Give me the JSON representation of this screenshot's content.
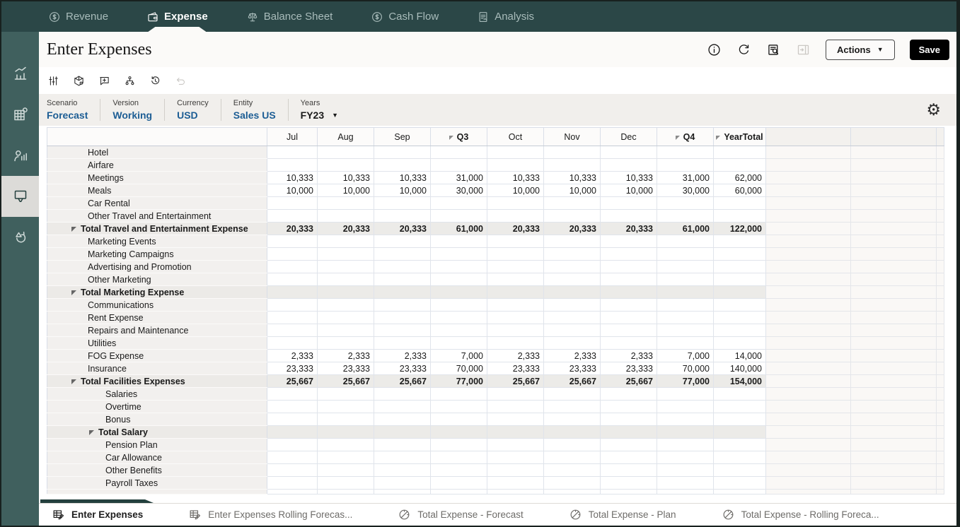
{
  "top_nav": {
    "tabs": [
      {
        "label": "Revenue",
        "icon": "revenue",
        "active": false
      },
      {
        "label": "Expense",
        "icon": "expense",
        "active": true
      },
      {
        "label": "Balance Sheet",
        "icon": "balance-sheet",
        "active": false
      },
      {
        "label": "Cash Flow",
        "icon": "cash-flow",
        "active": false
      },
      {
        "label": "Analysis",
        "icon": "analysis",
        "active": false
      }
    ]
  },
  "sidebar": {
    "items": [
      {
        "name": "dashboards",
        "icon": "bar-line-chart",
        "active": false
      },
      {
        "name": "planning",
        "icon": "grid-gear",
        "active": false
      },
      {
        "name": "workforce",
        "icon": "person-chart",
        "active": false
      },
      {
        "name": "data-entry",
        "icon": "form-funnel",
        "active": true
      },
      {
        "name": "process",
        "icon": "flow-approve",
        "active": false
      }
    ]
  },
  "page_header": {
    "title": "Enter Expenses",
    "icons": [
      {
        "name": "info",
        "disabled": false
      },
      {
        "name": "refresh",
        "disabled": false
      },
      {
        "name": "list-search",
        "disabled": false
      },
      {
        "name": "collapse-panel",
        "disabled": true
      }
    ],
    "actions_label": "Actions",
    "actions_caret": "▼",
    "save_label": "Save"
  },
  "toolbar": {
    "icons": [
      {
        "name": "adjust",
        "disabled": false
      },
      {
        "name": "cube",
        "disabled": false
      },
      {
        "name": "comment-add",
        "disabled": false
      },
      {
        "name": "hierarchy",
        "disabled": false
      },
      {
        "name": "history",
        "disabled": false
      },
      {
        "name": "undo",
        "disabled": true
      }
    ]
  },
  "pov": {
    "items": [
      {
        "label": "Scenario",
        "value": "Forecast",
        "link": true,
        "dropdown": false
      },
      {
        "label": "Version",
        "value": "Working",
        "link": true,
        "dropdown": false
      },
      {
        "label": "Currency",
        "value": "USD",
        "link": true,
        "dropdown": false
      },
      {
        "label": "Entity",
        "value": "Sales US",
        "link": true,
        "dropdown": false
      },
      {
        "label": "Years",
        "value": "FY23",
        "link": false,
        "dropdown": true
      }
    ],
    "dropdown_caret": "▼",
    "settings_icon": "⚙"
  },
  "grid": {
    "columns": [
      {
        "label": "Jul"
      },
      {
        "label": "Aug"
      },
      {
        "label": "Sep"
      },
      {
        "label": "Q3",
        "bold": true,
        "collapse": true
      },
      {
        "label": "Oct"
      },
      {
        "label": "Nov"
      },
      {
        "label": "Dec"
      },
      {
        "label": "Q4",
        "bold": true,
        "collapse": true
      },
      {
        "label": "YearTotal",
        "bold": true,
        "collapse": true
      }
    ],
    "rows": [
      {
        "label": "Hotel",
        "indent": 2,
        "total": false,
        "values": [
          "",
          "",
          "",
          "",
          "",
          "",
          "",
          "",
          ""
        ]
      },
      {
        "label": "Airfare",
        "indent": 2,
        "total": false,
        "values": [
          "",
          "",
          "",
          "",
          "",
          "",
          "",
          "",
          ""
        ]
      },
      {
        "label": "Meetings",
        "indent": 2,
        "total": false,
        "values": [
          "10,333",
          "10,333",
          "10,333",
          "31,000",
          "10,333",
          "10,333",
          "10,333",
          "31,000",
          "62,000"
        ]
      },
      {
        "label": "Meals",
        "indent": 2,
        "total": false,
        "values": [
          "10,000",
          "10,000",
          "10,000",
          "30,000",
          "10,000",
          "10,000",
          "10,000",
          "30,000",
          "60,000"
        ]
      },
      {
        "label": "Car Rental",
        "indent": 2,
        "total": false,
        "values": [
          "",
          "",
          "",
          "",
          "",
          "",
          "",
          "",
          ""
        ]
      },
      {
        "label": "Other Travel and Entertainment",
        "indent": 2,
        "total": false,
        "values": [
          "",
          "",
          "",
          "",
          "",
          "",
          "",
          "",
          ""
        ]
      },
      {
        "label": "Total Travel and Entertainment Expense",
        "indent": 1,
        "total": true,
        "values": [
          "20,333",
          "20,333",
          "20,333",
          "61,000",
          "20,333",
          "20,333",
          "20,333",
          "61,000",
          "122,000"
        ]
      },
      {
        "label": "Marketing Events",
        "indent": 2,
        "total": false,
        "values": [
          "",
          "",
          "",
          "",
          "",
          "",
          "",
          "",
          ""
        ]
      },
      {
        "label": "Marketing Campaigns",
        "indent": 2,
        "total": false,
        "values": [
          "",
          "",
          "",
          "",
          "",
          "",
          "",
          "",
          ""
        ]
      },
      {
        "label": "Advertising and Promotion",
        "indent": 2,
        "total": false,
        "values": [
          "",
          "",
          "",
          "",
          "",
          "",
          "",
          "",
          ""
        ]
      },
      {
        "label": "Other Marketing",
        "indent": 2,
        "total": false,
        "values": [
          "",
          "",
          "",
          "",
          "",
          "",
          "",
          "",
          ""
        ]
      },
      {
        "label": "Total Marketing Expense",
        "indent": 1,
        "total": true,
        "values": [
          "",
          "",
          "",
          "",
          "",
          "",
          "",
          "",
          ""
        ]
      },
      {
        "label": "Communications",
        "indent": 2,
        "total": false,
        "values": [
          "",
          "",
          "",
          "",
          "",
          "",
          "",
          "",
          ""
        ]
      },
      {
        "label": "Rent Expense",
        "indent": 2,
        "total": false,
        "values": [
          "",
          "",
          "",
          "",
          "",
          "",
          "",
          "",
          ""
        ]
      },
      {
        "label": "Repairs and Maintenance",
        "indent": 2,
        "total": false,
        "values": [
          "",
          "",
          "",
          "",
          "",
          "",
          "",
          "",
          ""
        ]
      },
      {
        "label": "Utilities",
        "indent": 2,
        "total": false,
        "values": [
          "",
          "",
          "",
          "",
          "",
          "",
          "",
          "",
          ""
        ]
      },
      {
        "label": "FOG Expense",
        "indent": 2,
        "total": false,
        "values": [
          "2,333",
          "2,333",
          "2,333",
          "7,000",
          "2,333",
          "2,333",
          "2,333",
          "7,000",
          "14,000"
        ]
      },
      {
        "label": "Insurance",
        "indent": 2,
        "total": false,
        "values": [
          "23,333",
          "23,333",
          "23,333",
          "70,000",
          "23,333",
          "23,333",
          "23,333",
          "70,000",
          "140,000"
        ]
      },
      {
        "label": "Total Facilities Expenses",
        "indent": 1,
        "total": true,
        "values": [
          "25,667",
          "25,667",
          "25,667",
          "77,000",
          "25,667",
          "25,667",
          "25,667",
          "77,000",
          "154,000"
        ]
      },
      {
        "label": "Salaries",
        "indent": 3,
        "total": false,
        "values": [
          "",
          "",
          "",
          "",
          "",
          "",
          "",
          "",
          ""
        ]
      },
      {
        "label": "Overtime",
        "indent": 3,
        "total": false,
        "values": [
          "",
          "",
          "",
          "",
          "",
          "",
          "",
          "",
          ""
        ]
      },
      {
        "label": "Bonus",
        "indent": 3,
        "total": false,
        "values": [
          "",
          "",
          "",
          "",
          "",
          "",
          "",
          "",
          ""
        ]
      },
      {
        "label": "Total Salary",
        "indent": 2,
        "total": true,
        "values": [
          "",
          "",
          "",
          "",
          "",
          "",
          "",
          "",
          ""
        ]
      },
      {
        "label": "Pension Plan",
        "indent": 3,
        "total": false,
        "values": [
          "",
          "",
          "",
          "",
          "",
          "",
          "",
          "",
          ""
        ]
      },
      {
        "label": "Car Allowance",
        "indent": 3,
        "total": false,
        "values": [
          "",
          "",
          "",
          "",
          "",
          "",
          "",
          "",
          ""
        ]
      },
      {
        "label": "Other Benefits",
        "indent": 3,
        "total": false,
        "values": [
          "",
          "",
          "",
          "",
          "",
          "",
          "",
          "",
          ""
        ]
      },
      {
        "label": "Payroll Taxes",
        "indent": 3,
        "total": false,
        "values": [
          "",
          "",
          "",
          "",
          "",
          "",
          "",
          "",
          ""
        ]
      }
    ]
  },
  "bottom_tabs": [
    {
      "label": "Enter Expenses",
      "icon": "form-edit",
      "active": true
    },
    {
      "label": "Enter Expenses Rolling Forecas...",
      "icon": "form-edit",
      "active": false
    },
    {
      "label": "Total Expense - Forecast",
      "icon": "dashboard",
      "active": false
    },
    {
      "label": "Total Expense - Plan",
      "icon": "dashboard",
      "active": false
    },
    {
      "label": "Total Expense - Rolling Foreca...",
      "icon": "dashboard",
      "active": false
    }
  ],
  "colors": {
    "top_nav": "#2b4747",
    "sidebar": "#40605e",
    "link_blue": "#1c5d94",
    "save_button": "#000000",
    "total_row": "#ecebe8",
    "gridline": "#e0e4eb"
  }
}
